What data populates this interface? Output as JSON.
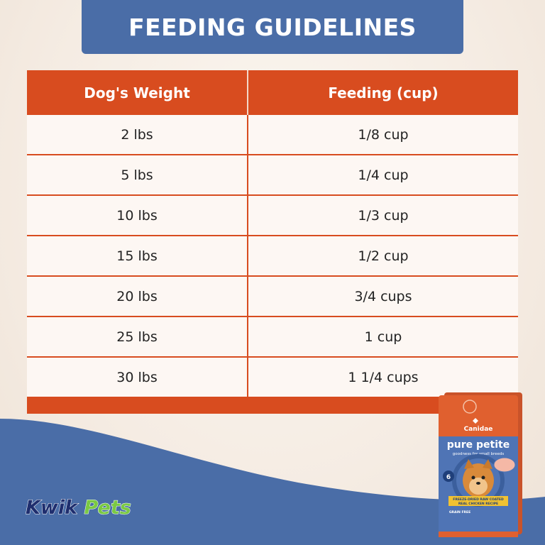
{
  "title": "FEEDING GUIDELINES",
  "table": {
    "headers": [
      "Dog's Weight",
      "Feeding (cup)"
    ],
    "rows": [
      [
        "2 lbs",
        "1/8 cup"
      ],
      [
        "5 lbs",
        "1/4 cup"
      ],
      [
        "10 lbs",
        "1/3 cup"
      ],
      [
        "15 lbs",
        "1/2 cup"
      ],
      [
        "20 lbs",
        "3/4 cups"
      ],
      [
        "25 lbs",
        "1 cup"
      ],
      [
        "30 lbs",
        "1 1/4 cups"
      ]
    ]
  },
  "logo": {
    "part1": "Kwik",
    "part2": "Pets"
  },
  "product": {
    "brand": "Canidae",
    "name": "pure petite",
    "tagline": "goodness for small breeds",
    "band1": "FREEZE-DRIED RAW COATED",
    "band2": "REAL CHICKEN RECIPE",
    "grain": "GRAIN FREE",
    "badge": "6"
  },
  "colors": {
    "banner": "#4a6da7",
    "table_accent": "#d84c1f",
    "cell_bg": "#fdf7f3",
    "wave": "#4a6da7",
    "logo_primary": "#1f2e6e",
    "logo_secondary": "#7ac943"
  }
}
